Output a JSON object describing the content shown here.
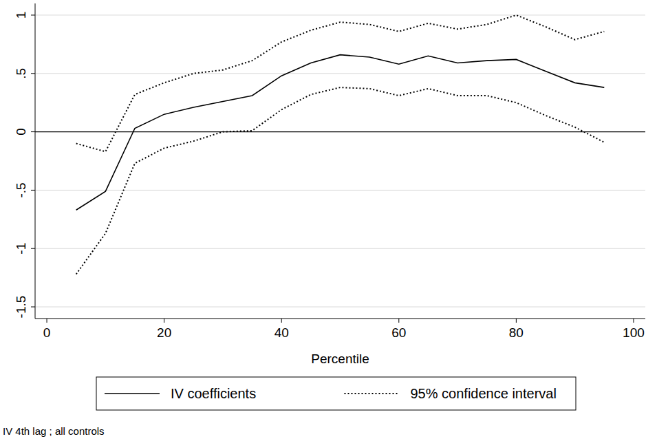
{
  "chart_data": {
    "type": "line",
    "x_label": "Percentile",
    "note": "IV 4th lag ; all controls",
    "x": [
      5,
      10,
      15,
      20,
      25,
      30,
      35,
      40,
      45,
      50,
      55,
      60,
      65,
      70,
      75,
      80,
      85,
      90,
      95
    ],
    "series": [
      {
        "name": "IV coefficients",
        "color": "#000000",
        "line_style": "solid",
        "values": [
          -0.67,
          -0.51,
          0.03,
          0.15,
          0.21,
          0.26,
          0.31,
          0.48,
          0.59,
          0.66,
          0.64,
          0.58,
          0.65,
          0.59,
          0.61,
          0.62,
          0.52,
          0.42,
          0.38
        ]
      },
      {
        "name": "95% confidence interval",
        "color": "#000000",
        "line_style": "dotted",
        "lower": [
          -1.22,
          -0.87,
          -0.27,
          -0.14,
          -0.08,
          0.0,
          0.01,
          0.19,
          0.32,
          0.38,
          0.37,
          0.31,
          0.37,
          0.31,
          0.31,
          0.25,
          0.14,
          0.04,
          -0.09
        ],
        "upper": [
          -0.1,
          -0.17,
          0.32,
          0.42,
          0.5,
          0.53,
          0.61,
          0.77,
          0.87,
          0.94,
          0.92,
          0.86,
          0.93,
          0.88,
          0.92,
          1.0,
          0.9,
          0.79,
          0.86
        ]
      }
    ],
    "xlim": [
      -2,
      102
    ],
    "xticks": [
      0,
      20,
      40,
      60,
      80,
      100
    ],
    "ylim": [
      -1.6,
      1.1
    ],
    "yticks": [
      {
        "value": -1.5,
        "label": "-1.5"
      },
      -1,
      {
        "value": -0.5,
        "label": "-.5"
      },
      0,
      {
        "value": 0.5,
        "label": ".5"
      },
      1
    ],
    "grid": true,
    "legend": "bottom"
  }
}
